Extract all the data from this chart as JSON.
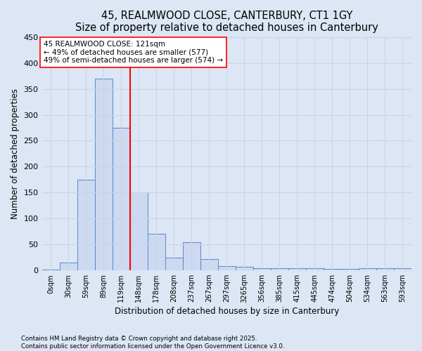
{
  "title": "45, REALMWOOD CLOSE, CANTERBURY, CT1 1GY",
  "subtitle": "Size of property relative to detached houses in Canterbury",
  "xlabel": "Distribution of detached houses by size in Canterbury",
  "ylabel": "Number of detached properties",
  "bar_labels": [
    "0sqm",
    "30sqm",
    "59sqm",
    "89sqm",
    "119sqm",
    "148sqm",
    "178sqm",
    "208sqm",
    "237sqm",
    "267sqm",
    "297sqm",
    "3265qm",
    "356sqm",
    "385sqm",
    "415sqm",
    "445sqm",
    "474sqm",
    "504sqm",
    "534sqm",
    "563sqm",
    "593sqm"
  ],
  "bar_values": [
    2,
    15,
    175,
    370,
    275,
    150,
    70,
    25,
    55,
    22,
    8,
    7,
    5,
    5,
    5,
    5,
    3,
    3,
    5,
    5,
    5
  ],
  "bar_color": "#ccd9f0",
  "bar_edge_color": "#5a8ac6",
  "vline_x_pos": 4.5,
  "vline_color": "red",
  "annotation_text": "45 REALMWOOD CLOSE: 121sqm\n← 49% of detached houses are smaller (577)\n49% of semi-detached houses are larger (574) →",
  "annotation_box_color": "white",
  "annotation_box_edge": "red",
  "ylim": [
    0,
    450
  ],
  "yticks": [
    0,
    50,
    100,
    150,
    200,
    250,
    300,
    350,
    400,
    450
  ],
  "grid_color": "#c8d4e8",
  "footer1": "Contains HM Land Registry data © Crown copyright and database right 2025.",
  "footer2": "Contains public sector information licensed under the Open Government Licence v3.0.",
  "background_color": "#dce6f5"
}
